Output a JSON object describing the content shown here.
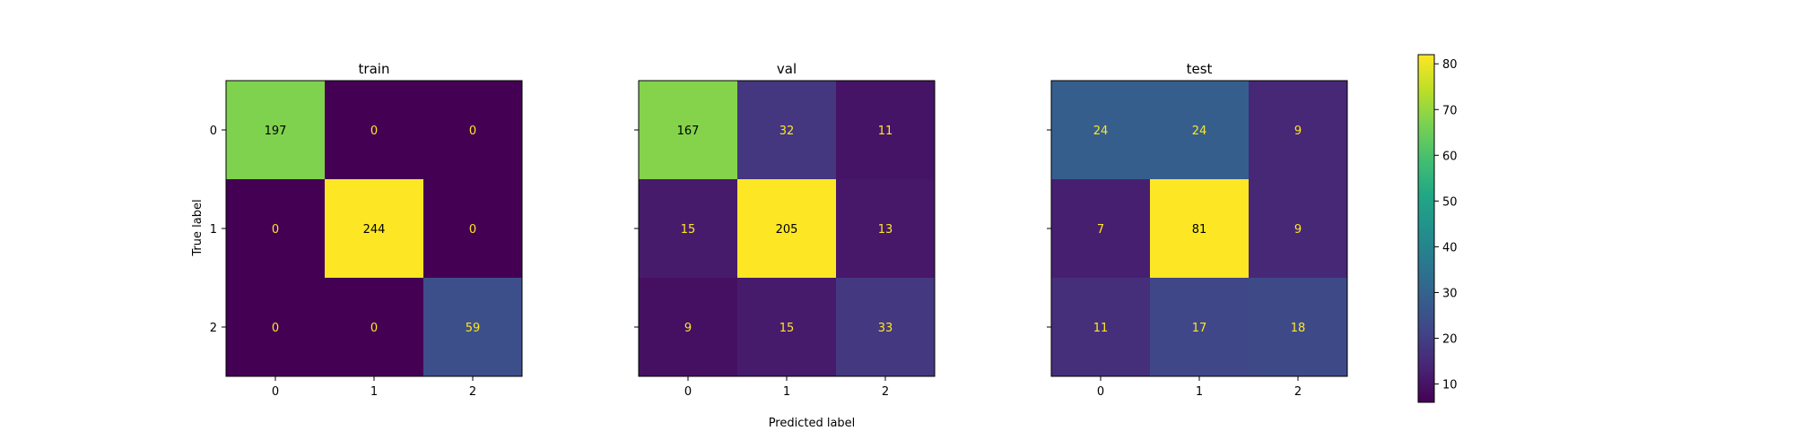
{
  "figure": {
    "xlabel": "Predicted label",
    "ylabel": "True label"
  },
  "chart_data": {
    "type": "heatmap",
    "colormap": "viridis",
    "labels": [
      "0",
      "1",
      "2"
    ],
    "text_color_dark": "#fde725",
    "text_color_light": "#000000",
    "colorbar": {
      "min": 6,
      "max": 82,
      "ticks": [
        10,
        20,
        30,
        40,
        50,
        60,
        70,
        80
      ]
    },
    "panels": [
      {
        "title": "train",
        "matrix": [
          [
            197,
            0,
            0
          ],
          [
            0,
            244,
            0
          ],
          [
            0,
            0,
            59
          ]
        ],
        "vmax": 244
      },
      {
        "title": "val",
        "matrix": [
          [
            167,
            32,
            11
          ],
          [
            15,
            205,
            13
          ],
          [
            9,
            15,
            33
          ]
        ],
        "vmax": 205
      },
      {
        "title": "test",
        "matrix": [
          [
            24,
            24,
            9
          ],
          [
            7,
            81,
            9
          ],
          [
            11,
            17,
            18
          ]
        ],
        "vmax": 81
      }
    ]
  }
}
